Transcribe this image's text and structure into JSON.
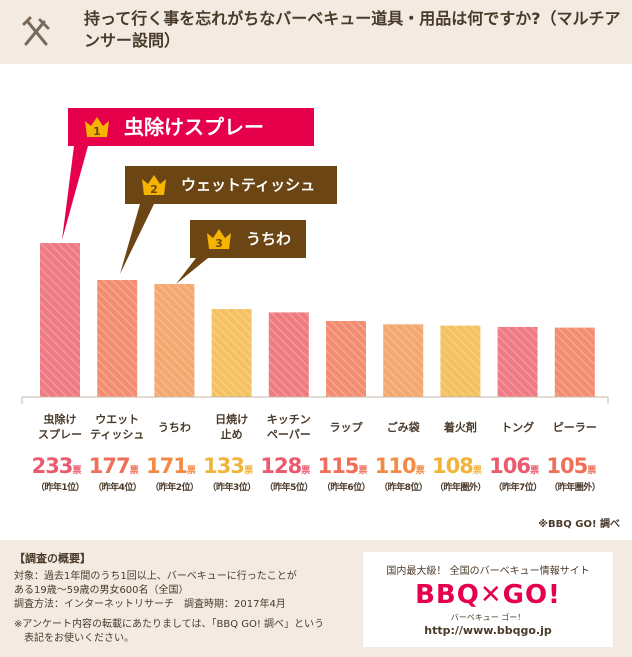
{
  "header": {
    "title": "持って行く事を忘れがちなバーベキュー道具・用品は何ですか?（マルチアンサー設問）",
    "icon": "fork-knife-icon"
  },
  "chart_data": {
    "type": "bar",
    "categories": [
      [
        "虫除け",
        "スプレー"
      ],
      [
        "ウエット",
        "ティッシュ"
      ],
      [
        "うちわ"
      ],
      [
        "日焼け",
        "止め"
      ],
      [
        "キッチン",
        "ペーパー"
      ],
      [
        "ラップ"
      ],
      [
        "ごみ袋"
      ],
      [
        "着火剤"
      ],
      [
        "トング"
      ],
      [
        "ピーラー"
      ]
    ],
    "values": [
      233,
      177,
      171,
      133,
      128,
      115,
      110,
      108,
      106,
      105
    ],
    "unit": "票",
    "last_year": [
      "（昨年1位）",
      "（昨年4位）",
      "（昨年2位）",
      "（昨年3位）",
      "（昨年5位）",
      "（昨年6位）",
      "（昨年8位）",
      "（昨年圏外）",
      "（昨年7位）",
      "（昨年圏外）"
    ],
    "colors": [
      "#ee7a84",
      "#f38d72",
      "#f4a76e",
      "#f3c160",
      "#ef7b81",
      "#f38d72",
      "#f4a76e",
      "#f3c160",
      "#ee7a84",
      "#f38d72"
    ],
    "value_colors": [
      "#ec5a6e",
      "#ef6f59",
      "#f38b45",
      "#f0b43c",
      "#ec5a6e",
      "#ef6f59",
      "#f38b45",
      "#f0b43c",
      "#ec5a6e",
      "#ef6f59"
    ],
    "ylim": [
      0,
      233
    ],
    "grid": false,
    "source": "※BBQ GO! 調べ"
  },
  "callouts": [
    {
      "rank": "1",
      "label": "虫除けスプレー",
      "color": "#e6004c"
    },
    {
      "rank": "2",
      "label": "ウェットティッシュ",
      "color": "#6b4513"
    },
    {
      "rank": "3",
      "label": "うちわ",
      "color": "#6b4513"
    }
  ],
  "survey": {
    "heading": "【調査の概要】",
    "target_line1": "対象：過去1年間のうち1回以上、バーベキューに行ったことが",
    "target_line2": "ある19歳〜59歳の男女600名（全国）",
    "method": "調査方法：インターネットリサーチ　調査時期：2017年4月",
    "note_line1": "※アンケート内容の転載にあたりましては、「BBQ GO! 調べ」という",
    "note_line2": "　表記をお使いください。"
  },
  "brand": {
    "tagline": "国内最大級！ 全国のバーベキュー情報サイト",
    "logo": "BBQ✕GO!",
    "logo_sub": "バーベキュー ゴー！",
    "url": "http://www.bbqgo.jp",
    "accent": "#e6004c"
  }
}
